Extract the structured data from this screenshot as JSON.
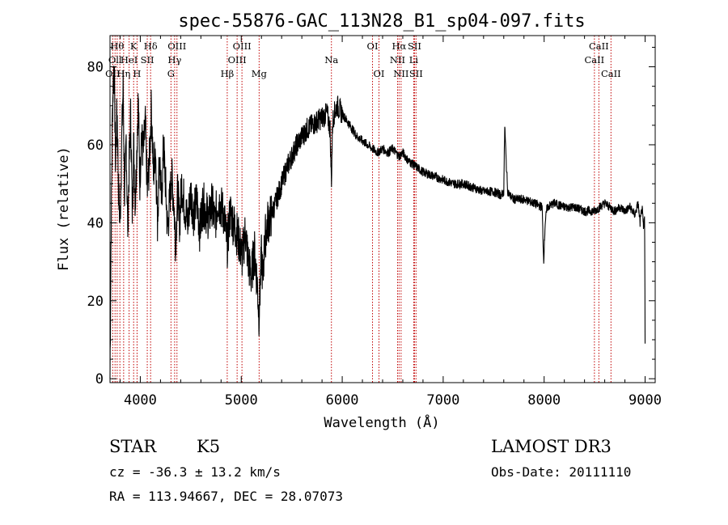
{
  "chart_data": {
    "type": "line",
    "title": "spec-55876-GAC_113N28_B1_sp04-097.fits",
    "xlabel": "Wavelength (Å)",
    "ylabel": "Flux (relative)",
    "xlim": [
      3700,
      9100
    ],
    "ylim": [
      -1,
      88
    ],
    "xticks": [
      4000,
      5000,
      6000,
      7000,
      8000,
      9000
    ],
    "yticks": [
      0,
      20,
      40,
      60,
      80
    ],
    "line_color": "#000000",
    "marker_color": "#c00000",
    "series": [
      {
        "name": "flux",
        "x": [
          3700,
          3710,
          3725,
          3740,
          3755,
          3770,
          3785,
          3800,
          3815,
          3830,
          3845,
          3860,
          3875,
          3890,
          3905,
          3920,
          3935,
          3950,
          3965,
          3980,
          3995,
          4010,
          4030,
          4050,
          4070,
          4090,
          4110,
          4130,
          4150,
          4170,
          4190,
          4210,
          4230,
          4250,
          4270,
          4290,
          4310,
          4330,
          4350,
          4370,
          4390,
          4410,
          4440,
          4470,
          4500,
          4530,
          4560,
          4590,
          4620,
          4650,
          4680,
          4710,
          4740,
          4770,
          4800,
          4830,
          4861,
          4890,
          4920,
          4950,
          4980,
          5010,
          5040,
          5070,
          5100,
          5130,
          5160,
          5175,
          5185,
          5200,
          5215,
          5230,
          5260,
          5300,
          5350,
          5400,
          5450,
          5500,
          5550,
          5600,
          5650,
          5700,
          5750,
          5800,
          5850,
          5880,
          5893,
          5905,
          5920,
          5950,
          6000,
          6050,
          6100,
          6150,
          6200,
          6250,
          6300,
          6350,
          6400,
          6450,
          6500,
          6563,
          6600,
          6650,
          6700,
          6750,
          6800,
          6900,
          7000,
          7100,
          7200,
          7300,
          7400,
          7500,
          7580,
          7600,
          7610,
          7625,
          7640,
          7660,
          7700,
          7800,
          7900,
          7980,
          7995,
          8010,
          8030,
          8100,
          8200,
          8300,
          8400,
          8500,
          8550,
          8600,
          8650,
          8700,
          8750,
          8800,
          8850,
          8900,
          8930,
          8950,
          8970,
          8985,
          8995,
          9000
        ],
        "values": [
          0,
          35,
          70,
          82,
          55,
          70,
          48,
          40,
          60,
          75,
          45,
          62,
          38,
          55,
          68,
          43,
          60,
          45,
          58,
          72,
          50,
          62,
          58,
          65,
          48,
          56,
          70,
          52,
          60,
          40,
          58,
          45,
          60,
          50,
          38,
          45,
          52,
          46,
          35,
          48,
          40,
          50,
          44,
          40,
          48,
          42,
          46,
          38,
          45,
          43,
          41,
          45,
          40,
          46,
          44,
          42,
          34,
          43,
          40,
          38,
          35,
          31,
          38,
          30,
          26,
          33,
          24,
          16,
          22,
          32,
          25,
          35,
          40,
          42,
          46,
          50,
          54,
          57,
          60,
          62,
          64,
          65,
          66,
          67,
          68,
          64,
          50,
          66,
          68,
          70,
          68,
          66,
          64,
          62,
          61,
          60,
          59,
          58,
          59,
          58,
          59,
          57,
          58,
          56,
          55,
          54,
          53,
          52,
          51,
          50,
          50,
          49,
          48,
          48,
          47,
          48,
          65,
          55,
          48,
          47,
          46,
          46,
          45,
          44,
          30,
          40,
          44,
          45,
          44,
          44,
          43,
          43,
          44,
          45,
          44,
          43,
          44,
          43,
          44,
          42,
          45,
          40,
          44,
          38,
          42,
          10
        ]
      }
    ],
    "line_markers": [
      {
        "wavelength": 3727,
        "label": "OII",
        "row": 3
      },
      {
        "wavelength": 3750,
        "label": "Oll",
        "row": 2
      },
      {
        "wavelength": 3771,
        "label": "Hθ",
        "row": 1
      },
      {
        "wavelength": 3798,
        "label": "",
        "row": 1
      },
      {
        "wavelength": 3835,
        "label": "Hη",
        "row": 3
      },
      {
        "wavelength": 3889,
        "label": "HeI",
        "row": 2
      },
      {
        "wavelength": 3934,
        "label": "K",
        "row": 1
      },
      {
        "wavelength": 3968,
        "label": "H",
        "row": 3
      },
      {
        "wavelength": 4069,
        "label": "SII",
        "row": 2
      },
      {
        "wavelength": 4102,
        "label": "Hδ",
        "row": 1
      },
      {
        "wavelength": 4304,
        "label": "G",
        "row": 3
      },
      {
        "wavelength": 4340,
        "label": "Hγ",
        "row": 2
      },
      {
        "wavelength": 4363,
        "label": "OIII",
        "row": 1
      },
      {
        "wavelength": 4861,
        "label": "Hβ",
        "row": 3
      },
      {
        "wavelength": 4959,
        "label": "OIII",
        "row": 2
      },
      {
        "wavelength": 5007,
        "label": "OIII",
        "row": 1
      },
      {
        "wavelength": 5177,
        "label": "Mg",
        "row": 3
      },
      {
        "wavelength": 5893,
        "label": "Na",
        "row": 2
      },
      {
        "wavelength": 6300,
        "label": "OI",
        "row": 1
      },
      {
        "wavelength": 6364,
        "label": "OI",
        "row": 3
      },
      {
        "wavelength": 6548,
        "label": "NII",
        "row": 2
      },
      {
        "wavelength": 6563,
        "label": "Hα",
        "row": 1
      },
      {
        "wavelength": 6583,
        "label": "NII",
        "row": 3
      },
      {
        "wavelength": 6708,
        "label": "Li",
        "row": 2
      },
      {
        "wavelength": 6716,
        "label": "SII",
        "row": 1
      },
      {
        "wavelength": 6731,
        "label": "SII",
        "row": 3
      },
      {
        "wavelength": 8498,
        "label": "CaII",
        "row": 2
      },
      {
        "wavelength": 8542,
        "label": "CaII",
        "row": 1
      },
      {
        "wavelength": 8662,
        "label": "CaII",
        "row": 3
      }
    ]
  },
  "info": {
    "class": "STAR",
    "subclass": "K5",
    "survey": "LAMOST DR3",
    "cz": "cz = -36.3 ± 13.2 km/s",
    "obs_date": "Obs-Date: 20111110",
    "coords": "RA = 113.94667, DEC =  28.07073"
  }
}
